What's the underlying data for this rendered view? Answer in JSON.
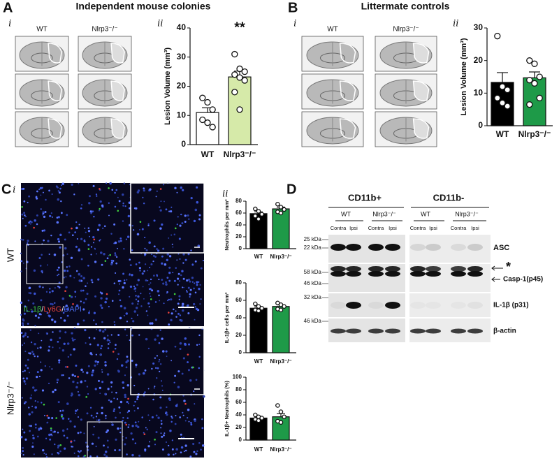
{
  "panels": {
    "A": {
      "letter": "A",
      "title": "Independent mouse colonies",
      "sub_i": "i",
      "sub_ii": "ii",
      "image_labels": [
        "WT",
        "Nlrp3⁻/⁻"
      ]
    },
    "B": {
      "letter": "B",
      "title": "Littermate controls",
      "sub_i": "i",
      "sub_ii": "ii",
      "image_labels": [
        "WT",
        "Nlrp3⁻/⁻"
      ]
    },
    "C": {
      "letter": "C",
      "sub_i": "i",
      "sub_ii": "ii",
      "row_labels": [
        "WT",
        "Nlrp3⁻/⁻"
      ],
      "stain_parts": [
        "IL-1β",
        "/",
        "Ly6G",
        "/",
        "DAPI"
      ],
      "stain_colors": [
        "#3ecf3e",
        "#ffffff",
        "#e8413c",
        "#ffffff",
        "#4a6cf0"
      ]
    },
    "D": {
      "letter": "D",
      "groups": [
        "CD11b+",
        "CD11b-"
      ],
      "genotypes": [
        "WT",
        "Nlrp3⁻/⁻",
        "WT",
        "Nlrp3⁻/⁻"
      ],
      "lanes": [
        "Contra",
        "Ipsi",
        "Contra",
        "Ipsi",
        "Contra",
        "Ipsi",
        "Contra",
        "Ipsi"
      ],
      "kda_labels": [
        "25 kDa",
        "22 kDa",
        "58 kDa",
        "46 kDa",
        "32 kDa",
        "46 kDa"
      ],
      "band_labels": [
        "ASC",
        "*",
        "Casp-1(p45)",
        "IL-1β (p31)",
        "β-actin"
      ]
    }
  },
  "chart_data": [
    {
      "type": "bar",
      "ylabel": "Lesion Volume (mm³)",
      "categories": [
        "WT",
        "Nlrp3⁻/⁻"
      ],
      "values": [
        11,
        23.2
      ],
      "errors": [
        1.6,
        2
      ],
      "points": [
        [
          16,
          14.5,
          12,
          8.5,
          7.5,
          6
        ],
        [
          31,
          26,
          25,
          24,
          23,
          22,
          18,
          12
        ]
      ],
      "colors": [
        "#ffffff",
        "#d6eaa9"
      ],
      "ylim": [
        0,
        40
      ],
      "yticks": [
        0,
        10,
        20,
        30,
        40
      ],
      "annotation": "**"
    },
    {
      "type": "bar",
      "ylabel": "Lesion Volume (mm³)",
      "categories": [
        "WT",
        "Nlrp3⁻/⁻"
      ],
      "values": [
        13.3,
        14.7
      ],
      "errors": [
        3,
        1.8
      ],
      "points": [
        [
          27.5,
          12,
          11,
          8.5,
          7,
          6
        ],
        [
          20,
          19,
          15,
          14,
          13,
          8.5,
          6.5
        ]
      ],
      "colors": [
        "#000000",
        "#1e9a48"
      ],
      "ylim": [
        0,
        30
      ],
      "yticks": [
        0,
        10,
        20,
        30
      ]
    },
    {
      "type": "bar",
      "ylabel": "Neutrophils per mm²",
      "categories": [
        "WT",
        "Nlrp3⁻/⁻"
      ],
      "values": [
        59,
        67
      ],
      "errors": [
        3,
        3
      ],
      "points": [
        [
          67,
          63,
          58,
          55,
          50
        ],
        [
          75,
          70,
          66,
          62,
          60
        ]
      ],
      "colors": [
        "#000000",
        "#1e9a48"
      ],
      "ylim": [
        0,
        80
      ],
      "yticks": [
        0,
        20,
        40,
        60,
        80
      ]
    },
    {
      "type": "bar",
      "ylabel": "IL-1β+ cells per mm²",
      "categories": [
        "WT",
        "Nlrp3⁻/⁻"
      ],
      "values": [
        51,
        53
      ],
      "errors": [
        1.5,
        1.8
      ],
      "points": [
        [
          56,
          53,
          51,
          49,
          48
        ],
        [
          57,
          55,
          53,
          50,
          49
        ]
      ],
      "colors": [
        "#000000",
        "#1e9a48"
      ],
      "ylim": [
        0,
        80
      ],
      "yticks": [
        0,
        20,
        40,
        60,
        80
      ]
    },
    {
      "type": "bar",
      "ylabel": "IL-1β+ Neutrophils (%)",
      "categories": [
        "WT",
        "Nlrp3⁻/⁻"
      ],
      "values": [
        35,
        37
      ],
      "errors": [
        2,
        5
      ],
      "points": [
        [
          40,
          37,
          35,
          33,
          31
        ],
        [
          55,
          45,
          37,
          30,
          28
        ]
      ],
      "colors": [
        "#000000",
        "#1e9a48"
      ],
      "ylim": [
        0,
        100
      ],
      "yticks": [
        0,
        20,
        40,
        60,
        80,
        100
      ]
    }
  ]
}
